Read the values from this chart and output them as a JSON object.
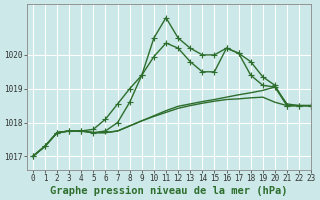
{
  "title": "Graphe pression niveau de la mer (hPa)",
  "background_color": "#cce8e8",
  "grid_color": "#ffffff",
  "line_color": "#2d6e2d",
  "xlim": [
    -0.5,
    23
  ],
  "ylim": [
    1016.6,
    1021.5
  ],
  "yticks": [
    1017,
    1018,
    1019,
    1020
  ],
  "xticks": [
    0,
    1,
    2,
    3,
    4,
    5,
    6,
    7,
    8,
    9,
    10,
    11,
    12,
    13,
    14,
    15,
    16,
    17,
    18,
    19,
    20,
    21,
    22,
    23
  ],
  "series": [
    [
      1017.0,
      1017.3,
      1017.7,
      1017.75,
      1017.75,
      1017.7,
      1017.75,
      1018.0,
      1018.6,
      1019.4,
      1020.5,
      1021.1,
      1020.5,
      1020.2,
      1020.0,
      1020.0,
      1020.2,
      1020.05,
      1019.8,
      1019.35,
      1019.1,
      1018.5,
      1018.5,
      1018.5
    ],
    [
      1017.0,
      1017.3,
      1017.7,
      1017.75,
      1017.75,
      1017.8,
      1018.1,
      1018.55,
      1019.0,
      1019.4,
      1019.95,
      1020.35,
      1020.2,
      1019.8,
      1019.5,
      1019.5,
      1020.2,
      1020.05,
      1019.4,
      1019.1,
      1019.05,
      1018.5,
      1018.5,
      1018.5
    ],
    [
      1017.0,
      1017.3,
      1017.7,
      1017.75,
      1017.75,
      1017.7,
      1017.7,
      1017.75,
      1017.9,
      1018.05,
      1018.2,
      1018.35,
      1018.48,
      1018.55,
      1018.62,
      1018.68,
      1018.75,
      1018.82,
      1018.88,
      1018.95,
      1019.05,
      1018.55,
      1018.5,
      1018.5
    ],
    [
      1017.0,
      1017.3,
      1017.7,
      1017.75,
      1017.75,
      1017.7,
      1017.7,
      1017.75,
      1017.9,
      1018.05,
      1018.18,
      1018.3,
      1018.42,
      1018.5,
      1018.57,
      1018.63,
      1018.68,
      1018.7,
      1018.73,
      1018.75,
      1018.6,
      1018.5,
      1018.5,
      1018.5
    ]
  ],
  "markers": [
    true,
    true,
    false,
    false
  ],
  "marker": "+",
  "markersize": 4,
  "linewidth": 1.0,
  "title_fontsize": 7.5,
  "tick_fontsize": 5.5
}
